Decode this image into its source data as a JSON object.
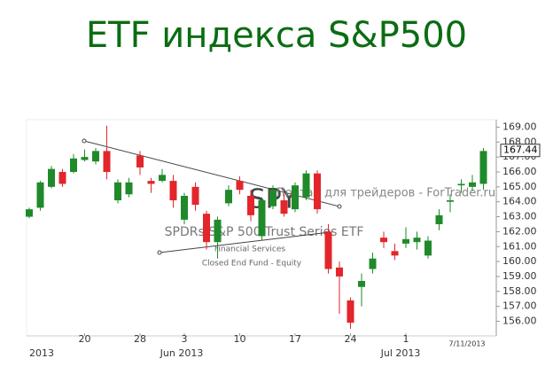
{
  "chart_data": {
    "type": "candlestick",
    "title": "ETF индекса S&P500",
    "watermark": {
      "symbol": "SPY",
      "name": "SPDRs S&P 500 Trust Series ETF",
      "sector": "Financial Services",
      "category": "Closed End Fund - Equity",
      "site": "Портал для трейдеров - ForTrader.ru"
    },
    "categories": [
      null,
      null,
      null,
      null,
      null,
      "20",
      null,
      null,
      null,
      null,
      "28",
      null,
      null,
      null,
      "3",
      null,
      null,
      null,
      null,
      "10",
      null,
      null,
      null,
      null,
      "17",
      null,
      null,
      null,
      null,
      "24",
      null,
      null,
      null,
      null,
      "1",
      null,
      null,
      null,
      null,
      null,
      null,
      null
    ],
    "month_labels": [
      "2013",
      "Jun 2013",
      "Jul 2013"
    ],
    "date_label": "7/11/2013",
    "open": [
      163.0,
      163.6,
      165.0,
      166.0,
      166.0,
      166.8,
      166.7,
      167.4,
      164.1,
      164.5,
      167.1,
      165.4,
      165.4,
      165.4,
      162.8,
      165.0,
      163.2,
      161.3,
      163.9,
      165.4,
      164.4,
      161.7,
      163.7,
      164.1,
      163.5,
      164.3,
      165.9,
      162.0,
      159.6,
      157.4,
      158.3,
      159.5,
      161.6,
      160.7,
      161.2,
      161.3,
      160.4,
      162.5,
      164.0,
      165.1,
      165.0,
      165.2
    ],
    "high": [
      163.6,
      165.4,
      166.4,
      166.2,
      167.2,
      167.5,
      167.6,
      169.1,
      165.5,
      165.6,
      167.4,
      165.6,
      166.2,
      165.8,
      164.6,
      165.3,
      163.4,
      163.0,
      165.1,
      165.7,
      164.8,
      164.3,
      165.1,
      164.5,
      165.3,
      166.1,
      166.1,
      162.5,
      160.0,
      157.6,
      159.2,
      160.6,
      162.0,
      161.2,
      162.3,
      162.0,
      161.7,
      163.5,
      164.5,
      165.5,
      165.8,
      167.6
    ],
    "low": [
      162.9,
      163.4,
      164.9,
      165.0,
      165.9,
      166.7,
      166.5,
      165.5,
      163.9,
      164.3,
      165.8,
      164.6,
      165.3,
      163.6,
      162.5,
      163.4,
      160.8,
      160.2,
      163.7,
      164.5,
      162.7,
      161.4,
      163.5,
      163.0,
      163.3,
      164.1,
      163.2,
      159.2,
      156.5,
      155.5,
      157.0,
      159.2,
      160.9,
      160.1,
      160.9,
      160.8,
      160.2,
      162.1,
      163.3,
      164.6,
      164.7,
      164.8
    ],
    "close": [
      163.5,
      165.3,
      166.2,
      165.2,
      166.9,
      167.0,
      167.4,
      166.0,
      165.3,
      165.3,
      166.3,
      165.2,
      165.8,
      164.1,
      164.4,
      163.8,
      161.3,
      162.8,
      164.8,
      164.8,
      163.1,
      164.1,
      164.8,
      163.2,
      165.1,
      165.9,
      163.5,
      159.5,
      159.0,
      155.9,
      158.7,
      160.2,
      161.3,
      160.4,
      161.5,
      161.6,
      161.4,
      163.1,
      164.1,
      165.2,
      165.3,
      167.4
    ],
    "up_color": "#1f8a2a",
    "down_color": "#e3262b",
    "last_price": 167.44,
    "ylim": [
      155.2,
      169.5
    ],
    "yticks": [
      {
        "value": 156,
        "label": "156.00"
      },
      {
        "value": 157,
        "label": "157.00"
      },
      {
        "value": 158,
        "label": "158.00"
      },
      {
        "value": 159,
        "label": "159.00"
      },
      {
        "value": 160,
        "label": "160.00"
      },
      {
        "value": 161,
        "label": "161.00"
      },
      {
        "value": 162,
        "label": "162.00"
      },
      {
        "value": 163,
        "label": "163.00"
      },
      {
        "value": 164,
        "label": "164.00"
      },
      {
        "value": 165,
        "label": "165.00"
      },
      {
        "value": 166,
        "label": "166.00"
      },
      {
        "value": 167,
        "label": "167.00"
      },
      {
        "value": 168,
        "label": "168.00"
      },
      {
        "value": 169,
        "label": "169.00"
      }
    ]
  }
}
